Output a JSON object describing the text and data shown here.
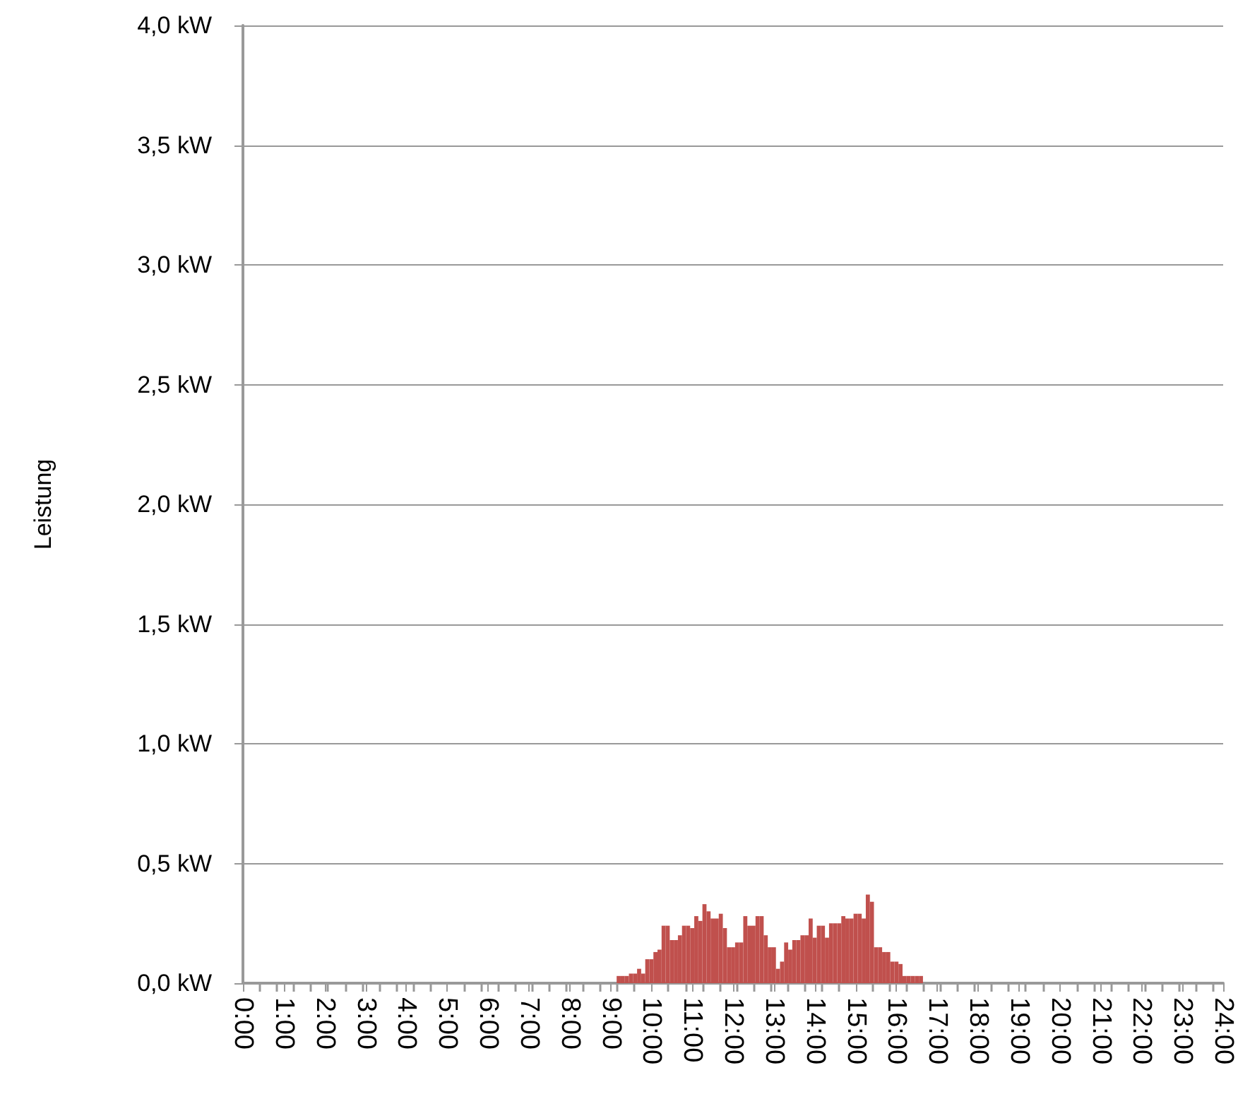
{
  "chart_data": {
    "type": "bar",
    "ylabel": "Leistung",
    "color": "#c0504d",
    "x": [
      9.2,
      9.3,
      9.4,
      9.5,
      9.6,
      9.7,
      9.8,
      9.9,
      10.0,
      10.1,
      10.2,
      10.3,
      10.4,
      10.5,
      10.6,
      10.7,
      10.8,
      10.9,
      11.0,
      11.1,
      11.2,
      11.3,
      11.4,
      11.5,
      11.6,
      11.7,
      11.8,
      11.9,
      12.0,
      12.1,
      12.2,
      12.3,
      12.4,
      12.5,
      12.6,
      12.7,
      12.8,
      12.9,
      13.0,
      13.1,
      13.2,
      13.3,
      13.4,
      13.5,
      13.6,
      13.7,
      13.8,
      13.9,
      14.0,
      14.1,
      14.2,
      14.3,
      14.4,
      14.5,
      14.6,
      14.7,
      14.8,
      14.9,
      15.0,
      15.1,
      15.2,
      15.3,
      15.4,
      15.5,
      15.6,
      15.7,
      15.8,
      15.9,
      16.0,
      16.1,
      16.2,
      16.3,
      16.4,
      16.5,
      16.6
    ],
    "values": [
      0.03,
      0.03,
      0.03,
      0.04,
      0.04,
      0.06,
      0.04,
      0.1,
      0.1,
      0.13,
      0.14,
      0.24,
      0.24,
      0.18,
      0.18,
      0.2,
      0.24,
      0.24,
      0.23,
      0.28,
      0.26,
      0.33,
      0.3,
      0.27,
      0.27,
      0.29,
      0.23,
      0.15,
      0.15,
      0.17,
      0.17,
      0.28,
      0.24,
      0.24,
      0.28,
      0.28,
      0.2,
      0.15,
      0.15,
      0.06,
      0.09,
      0.17,
      0.14,
      0.18,
      0.18,
      0.2,
      0.2,
      0.27,
      0.19,
      0.24,
      0.24,
      0.19,
      0.25,
      0.25,
      0.25,
      0.28,
      0.27,
      0.27,
      0.29,
      0.29,
      0.27,
      0.37,
      0.34,
      0.15,
      0.15,
      0.13,
      0.13,
      0.09,
      0.09,
      0.08,
      0.03,
      0.03,
      0.03,
      0.03,
      0.03
    ],
    "xlim": [
      0,
      24
    ],
    "xticks": [
      {
        "value": 0,
        "label": "0:00"
      },
      {
        "value": 1,
        "label": "1:00"
      },
      {
        "value": 2,
        "label": "2:00"
      },
      {
        "value": 3,
        "label": "3:00"
      },
      {
        "value": 4,
        "label": "4:00"
      },
      {
        "value": 5,
        "label": "5:00"
      },
      {
        "value": 6,
        "label": "6:00"
      },
      {
        "value": 7,
        "label": "7:00"
      },
      {
        "value": 8,
        "label": "8:00"
      },
      {
        "value": 9,
        "label": "9:00"
      },
      {
        "value": 10,
        "label": "10:00"
      },
      {
        "value": 11,
        "label": "11:00"
      },
      {
        "value": 12,
        "label": "12:00"
      },
      {
        "value": 13,
        "label": "13:00"
      },
      {
        "value": 14,
        "label": "14:00"
      },
      {
        "value": 15,
        "label": "15:00"
      },
      {
        "value": 16,
        "label": "16:00"
      },
      {
        "value": 17,
        "label": "17:00"
      },
      {
        "value": 18,
        "label": "18:00"
      },
      {
        "value": 19,
        "label": "19:00"
      },
      {
        "value": 20,
        "label": "20:00"
      },
      {
        "value": 21,
        "label": "21:00"
      },
      {
        "value": 22,
        "label": "22:00"
      },
      {
        "value": 23,
        "label": "23:00"
      },
      {
        "value": 24,
        "label": "24:00"
      }
    ],
    "ylim": [
      0,
      4
    ],
    "yticks": [
      {
        "value": 0,
        "label": "0,0 kW"
      },
      {
        "value": 0.5,
        "label": "0,5 kW"
      },
      {
        "value": 1,
        "label": "1,0 kW"
      },
      {
        "value": 1.5,
        "label": "1,5 kW"
      },
      {
        "value": 2,
        "label": "2,0 kW"
      },
      {
        "value": 2.5,
        "label": "2,5 kW"
      },
      {
        "value": 3,
        "label": "3,0 kW"
      },
      {
        "value": 3.5,
        "label": "3,5 kW"
      },
      {
        "value": 4,
        "label": "4,0 kW"
      }
    ],
    "grid": "y"
  }
}
